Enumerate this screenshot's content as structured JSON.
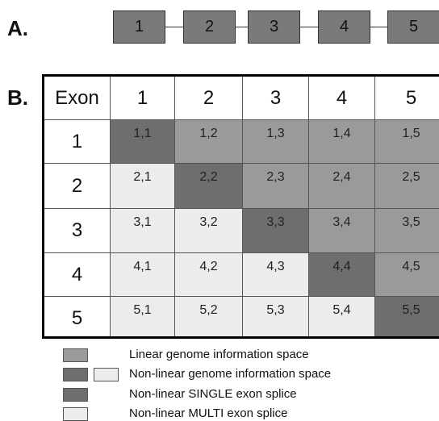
{
  "panel_a": {
    "label": "A.",
    "exons": [
      "1",
      "2",
      "3",
      "4",
      "5"
    ]
  },
  "panel_b": {
    "label": "B.",
    "corner_header": "Exon",
    "column_headers": [
      "1",
      "2",
      "3",
      "4",
      "5"
    ],
    "row_headers": [
      "1",
      "2",
      "3",
      "4",
      "5"
    ],
    "cells": [
      [
        "1,1",
        "1,2",
        "1,3",
        "1,4",
        "1,5"
      ],
      [
        "2,1",
        "2,2",
        "2,3",
        "2,4",
        "2,5"
      ],
      [
        "3,1",
        "3,2",
        "3,3",
        "3,4",
        "3,5"
      ],
      [
        "4,1",
        "4,2",
        "4,3",
        "4,4",
        "4,5"
      ],
      [
        "5,1",
        "5,2",
        "5,3",
        "5,4",
        "5,5"
      ]
    ]
  },
  "colors": {
    "linear": "#9a9a9a",
    "single": "#6e6e6e",
    "multi": "#ececec",
    "exon_box": "#7a7a7a"
  },
  "legend": [
    {
      "text": "Linear genome information space",
      "swatches": [
        "linear"
      ]
    },
    {
      "text": "Non-linear genome information space",
      "swatches": [
        "single",
        "multi"
      ]
    },
    {
      "text": "Non-linear SINGLE exon splice",
      "swatches": [
        "single"
      ]
    },
    {
      "text": "Non-linear MULTI exon splice",
      "swatches": [
        "multi"
      ]
    }
  ]
}
